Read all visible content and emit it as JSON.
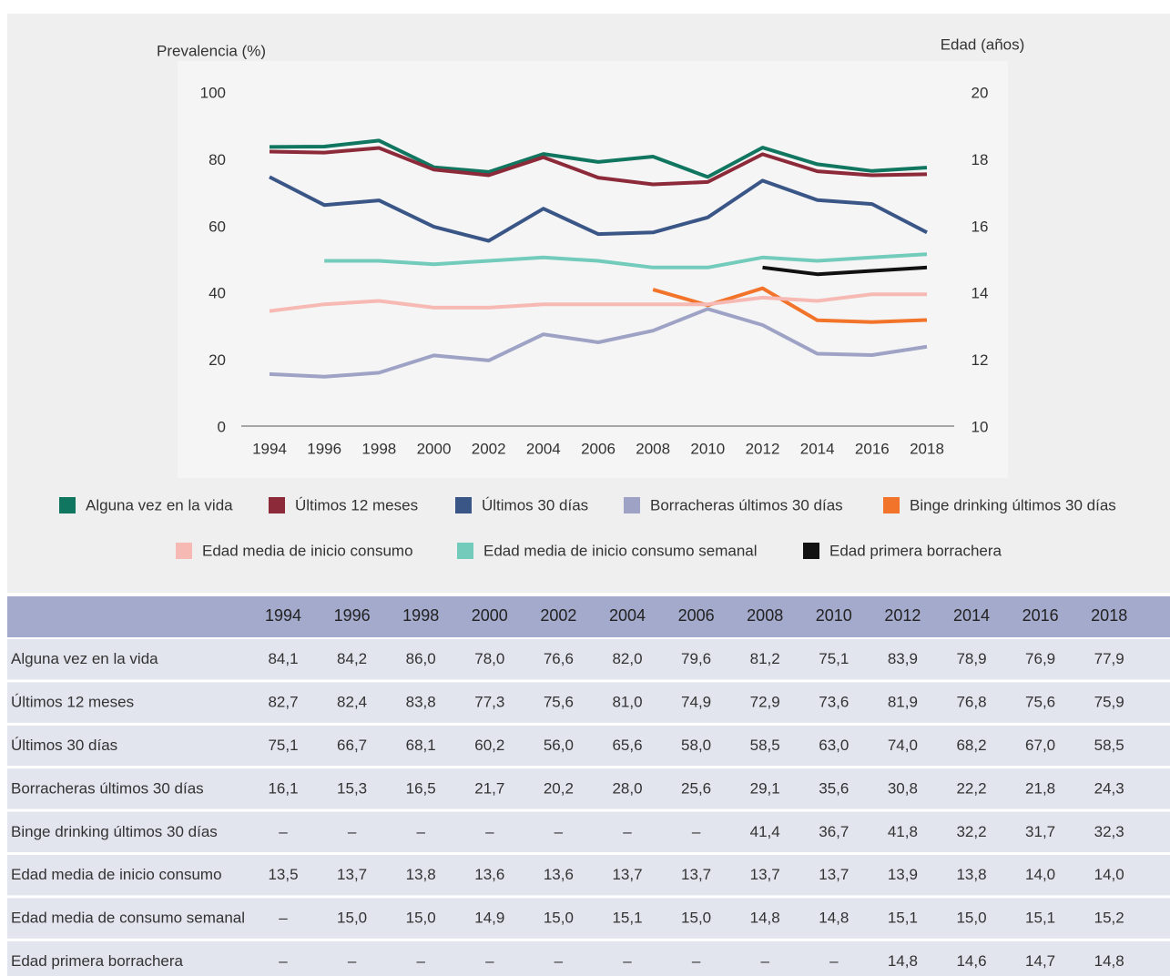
{
  "chart_data": {
    "type": "line",
    "ylabel": "Prevalencia (%)",
    "y2label": "Edad (años)",
    "categories": [
      "1994",
      "1996",
      "1998",
      "2000",
      "2002",
      "2004",
      "2006",
      "2008",
      "2010",
      "2012",
      "2014",
      "2016",
      "2018"
    ],
    "ylim": [
      0,
      100
    ],
    "yticks": [
      0,
      20,
      40,
      60,
      80,
      100
    ],
    "y2lim": [
      10,
      20
    ],
    "y2ticks": [
      10,
      12,
      14,
      16,
      18,
      20
    ],
    "series": [
      {
        "name": "Alguna vez en la vida",
        "color": "#11765f",
        "values": [
          84.1,
          84.2,
          86.0,
          78.0,
          76.6,
          82.0,
          79.6,
          81.2,
          75.1,
          83.9,
          78.9,
          76.9,
          77.9
        ]
      },
      {
        "name": "Últimos 12 meses",
        "color": "#8c2a3a",
        "values": [
          82.7,
          82.4,
          83.8,
          77.3,
          75.6,
          81.0,
          74.9,
          72.9,
          73.6,
          81.9,
          76.8,
          75.6,
          75.9
        ]
      },
      {
        "name": "Últimos 30 días",
        "color": "#3a5687",
        "values": [
          75.1,
          66.7,
          68.1,
          60.2,
          56.0,
          65.6,
          58.0,
          58.5,
          63.0,
          74.0,
          68.2,
          67.0,
          58.5
        ]
      },
      {
        "name": "Borracheras últimos 30 días",
        "color": "#9ea3c6",
        "values": [
          16.1,
          15.3,
          16.5,
          21.7,
          20.2,
          28.0,
          25.6,
          29.1,
          35.6,
          30.8,
          22.2,
          21.8,
          24.3
        ]
      },
      {
        "name": "Binge drinking últimos 30 días",
        "color": "#f2732a",
        "values": [
          null,
          null,
          null,
          null,
          null,
          null,
          null,
          41.4,
          36.7,
          41.8,
          32.2,
          31.7,
          32.3
        ]
      },
      {
        "name": "Edad media de inicio consumo",
        "color": "#f6b9b3",
        "axis": "y2",
        "values": [
          13.5,
          13.7,
          13.8,
          13.6,
          13.6,
          13.7,
          13.7,
          13.7,
          13.7,
          13.9,
          13.8,
          14.0,
          14.0
        ]
      },
      {
        "name": "Edad media de inicio consumo semanal",
        "color": "#72cbbb",
        "axis": "y2",
        "values": [
          null,
          15.0,
          15.0,
          14.9,
          15.0,
          15.1,
          15.0,
          14.8,
          14.8,
          15.1,
          15.0,
          15.1,
          15.2
        ]
      },
      {
        "name": "Edad primera borrachera",
        "color": "#111111",
        "axis": "y2",
        "values": [
          null,
          null,
          null,
          null,
          null,
          null,
          null,
          null,
          null,
          14.8,
          14.6,
          14.7,
          14.8
        ]
      }
    ]
  },
  "table": {
    "columns": [
      "1994",
      "1996",
      "1998",
      "2000",
      "2002",
      "2004",
      "2006",
      "2008",
      "2010",
      "2012",
      "2014",
      "2016",
      "2018"
    ],
    "rows": [
      {
        "label": "Alguna vez en la vida",
        "cells": [
          "84,1",
          "84,2",
          "86,0",
          "78,0",
          "76,6",
          "82,0",
          "79,6",
          "81,2",
          "75,1",
          "83,9",
          "78,9",
          "76,9",
          "77,9"
        ]
      },
      {
        "label": "Últimos 12 meses",
        "cells": [
          "82,7",
          "82,4",
          "83,8",
          "77,3",
          "75,6",
          "81,0",
          "74,9",
          "72,9",
          "73,6",
          "81,9",
          "76,8",
          "75,6",
          "75,9"
        ]
      },
      {
        "label": "Últimos 30 días",
        "cells": [
          "75,1",
          "66,7",
          "68,1",
          "60,2",
          "56,0",
          "65,6",
          "58,0",
          "58,5",
          "63,0",
          "74,0",
          "68,2",
          "67,0",
          "58,5"
        ]
      },
      {
        "label": "Borracheras últimos 30 días",
        "cells": [
          "16,1",
          "15,3",
          "16,5",
          "21,7",
          "20,2",
          "28,0",
          "25,6",
          "29,1",
          "35,6",
          "30,8",
          "22,2",
          "21,8",
          "24,3"
        ]
      },
      {
        "label": "Binge drinking últimos 30 días",
        "cells": [
          "–",
          "–",
          "–",
          "–",
          "–",
          "–",
          "–",
          "41,4",
          "36,7",
          "41,8",
          "32,2",
          "31,7",
          "32,3"
        ]
      },
      {
        "label": "Edad media de inicio consumo",
        "cells": [
          "13,5",
          "13,7",
          "13,8",
          "13,6",
          "13,6",
          "13,7",
          "13,7",
          "13,7",
          "13,7",
          "13,9",
          "13,8",
          "14,0",
          "14,0"
        ]
      },
      {
        "label": "Edad media de consumo semanal",
        "cells": [
          "–",
          "15,0",
          "15,0",
          "14,9",
          "15,0",
          "15,1",
          "15,0",
          "14,8",
          "14,8",
          "15,1",
          "15,0",
          "15,1",
          "15,2"
        ]
      },
      {
        "label": "Edad primera borrachera",
        "cells": [
          "–",
          "–",
          "–",
          "–",
          "–",
          "–",
          "–",
          "–",
          "–",
          "14,8",
          "14,6",
          "14,7",
          "14,8"
        ]
      }
    ]
  }
}
